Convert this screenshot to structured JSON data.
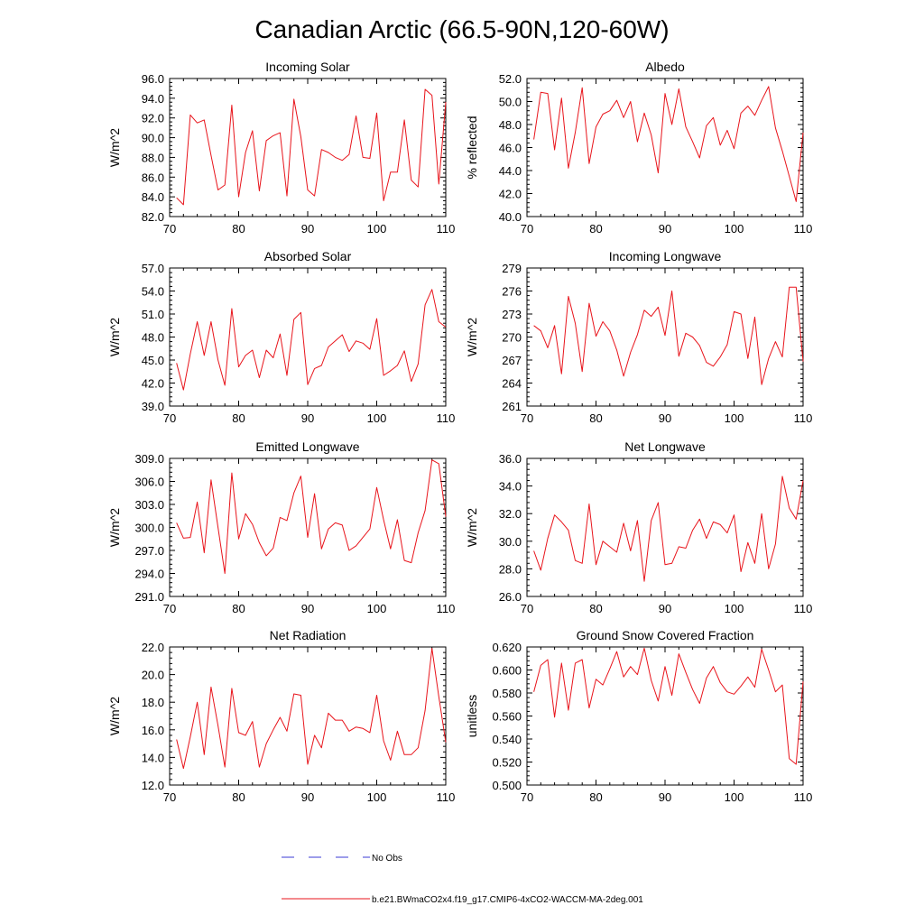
{
  "title": "Canadian Arctic (66.5-90N,120-60W)",
  "colors": {
    "model_line": "#e8141b",
    "obs_line": "#3b3bd6",
    "axis": "#000000"
  },
  "legend": {
    "obs_label": "No Obs",
    "model_label": "b.e21.BWmaCO2x4.f19_g17.CMIP6-4xCO2-WACCM-MA-2deg.001"
  },
  "chart_data": [
    {
      "type": "line",
      "title": "Incoming Solar",
      "ylabel": "W/m^2",
      "xlim": [
        70,
        110
      ],
      "ylim": [
        82,
        96
      ],
      "xticks": [
        70,
        80,
        90,
        100,
        110
      ],
      "yticks": [
        82,
        84,
        86,
        88,
        90,
        92,
        94,
        96
      ],
      "ydecimals": 1,
      "x": [
        71,
        72,
        73,
        74,
        75,
        76,
        77,
        78,
        79,
        80,
        81,
        82,
        83,
        84,
        85,
        86,
        87,
        88,
        89,
        90,
        91,
        92,
        93,
        94,
        95,
        96,
        97,
        98,
        99,
        100,
        101,
        102,
        103,
        104,
        105,
        106,
        107,
        108,
        109,
        110
      ],
      "values": [
        83.9,
        83.2,
        92.3,
        91.5,
        91.8,
        88.2,
        84.7,
        85.2,
        93.3,
        84.0,
        88.5,
        90.7,
        84.6,
        89.7,
        90.2,
        90.5,
        84.1,
        93.9,
        90.1,
        84.7,
        84.1,
        88.8,
        88.5,
        88.0,
        87.7,
        88.3,
        92.2,
        88.0,
        87.9,
        92.5,
        83.6,
        86.5,
        86.5,
        91.8,
        85.7,
        85.0,
        94.9,
        94.3,
        85.3,
        93.6
      ]
    },
    {
      "type": "line",
      "title": "Albedo",
      "ylabel": "% reflected",
      "xlim": [
        70,
        110
      ],
      "ylim": [
        40,
        52
      ],
      "xticks": [
        70,
        80,
        90,
        100,
        110
      ],
      "yticks": [
        40,
        42,
        44,
        46,
        48,
        50,
        52
      ],
      "ydecimals": 1,
      "x": [
        71,
        72,
        73,
        74,
        75,
        76,
        77,
        78,
        79,
        80,
        81,
        82,
        83,
        84,
        85,
        86,
        87,
        88,
        89,
        90,
        91,
        92,
        93,
        94,
        95,
        96,
        97,
        98,
        99,
        100,
        101,
        102,
        103,
        104,
        105,
        106,
        107,
        108,
        109,
        110
      ],
      "values": [
        46.7,
        50.8,
        50.7,
        45.8,
        50.3,
        44.2,
        47.3,
        51.2,
        44.6,
        47.8,
        48.9,
        49.2,
        50.1,
        48.6,
        50.0,
        46.5,
        49.0,
        47.1,
        43.8,
        50.7,
        48.0,
        51.1,
        47.8,
        46.5,
        45.1,
        47.9,
        48.6,
        46.2,
        47.5,
        45.9,
        49.0,
        49.6,
        48.8,
        50.1,
        51.3,
        47.7,
        45.7,
        43.5,
        41.3,
        47.3
      ]
    },
    {
      "type": "line",
      "title": "Absorbed Solar",
      "ylabel": "W/m^2",
      "xlim": [
        70,
        110
      ],
      "ylim": [
        39,
        57
      ],
      "xticks": [
        70,
        80,
        90,
        100,
        110
      ],
      "yticks": [
        39,
        42,
        45,
        48,
        51,
        54,
        57
      ],
      "ydecimals": 1,
      "x": [
        71,
        72,
        73,
        74,
        75,
        76,
        77,
        78,
        79,
        80,
        81,
        82,
        83,
        84,
        85,
        86,
        87,
        88,
        89,
        90,
        91,
        92,
        93,
        94,
        95,
        96,
        97,
        98,
        99,
        100,
        101,
        102,
        103,
        104,
        105,
        106,
        107,
        108,
        109,
        110
      ],
      "values": [
        44.6,
        41.1,
        45.8,
        50.0,
        45.6,
        50.0,
        45.0,
        41.7,
        51.7,
        44.1,
        45.6,
        46.3,
        42.7,
        46.3,
        45.3,
        48.4,
        43.0,
        50.3,
        51.2,
        41.8,
        43.9,
        44.3,
        46.7,
        47.5,
        48.3,
        46.1,
        47.5,
        47.2,
        46.4,
        50.4,
        43.0,
        43.6,
        44.3,
        46.2,
        42.2,
        44.5,
        52.2,
        54.2,
        50.0,
        49.3
      ]
    },
    {
      "type": "line",
      "title": "Incoming Longwave",
      "ylabel": "W/m^2",
      "xlim": [
        70,
        110
      ],
      "ylim": [
        261,
        279
      ],
      "xticks": [
        70,
        80,
        90,
        100,
        110
      ],
      "yticks": [
        261,
        264,
        267,
        270,
        273,
        276,
        279
      ],
      "ydecimals": 0,
      "x": [
        71,
        72,
        73,
        74,
        75,
        76,
        77,
        78,
        79,
        80,
        81,
        82,
        83,
        84,
        85,
        86,
        87,
        88,
        89,
        90,
        91,
        92,
        93,
        94,
        95,
        96,
        97,
        98,
        99,
        100,
        101,
        102,
        103,
        104,
        105,
        106,
        107,
        108,
        109,
        110
      ],
      "values": [
        271.5,
        270.8,
        268.6,
        271.5,
        265.2,
        275.3,
        271.8,
        265.5,
        274.4,
        270.1,
        272.0,
        270.8,
        268.3,
        264.9,
        268.0,
        270.3,
        273.5,
        272.7,
        273.9,
        270.2,
        276.0,
        267.5,
        270.5,
        270.0,
        268.9,
        266.7,
        266.2,
        267.4,
        269.0,
        273.3,
        273.0,
        267.2,
        272.6,
        263.8,
        267.2,
        269.4,
        267.4,
        276.5,
        276.5,
        266.8
      ]
    },
    {
      "type": "line",
      "title": "Emitted Longwave",
      "ylabel": "W/m^2",
      "xlim": [
        70,
        110
      ],
      "ylim": [
        291,
        309
      ],
      "xticks": [
        70,
        80,
        90,
        100,
        110
      ],
      "yticks": [
        291,
        294,
        297,
        300,
        303,
        306,
        309
      ],
      "ydecimals": 1,
      "x": [
        71,
        72,
        73,
        74,
        75,
        76,
        77,
        78,
        79,
        80,
        81,
        82,
        83,
        84,
        85,
        86,
        87,
        88,
        89,
        90,
        91,
        92,
        93,
        94,
        95,
        96,
        97,
        98,
        99,
        100,
        101,
        102,
        103,
        104,
        105,
        106,
        107,
        108,
        109,
        110
      ],
      "values": [
        300.6,
        298.6,
        298.7,
        303.3,
        296.7,
        306.2,
        300.0,
        294.0,
        307.1,
        298.5,
        301.8,
        300.4,
        298.0,
        296.3,
        297.3,
        301.3,
        300.9,
        304.5,
        306.7,
        298.7,
        304.4,
        297.2,
        299.8,
        300.6,
        300.3,
        297.0,
        297.6,
        298.7,
        299.8,
        305.2,
        301.0,
        297.2,
        301.0,
        295.7,
        295.4,
        299.3,
        302.2,
        308.8,
        308.3,
        301.4
      ]
    },
    {
      "type": "line",
      "title": "Net Longwave",
      "ylabel": "W/m^2",
      "xlim": [
        70,
        110
      ],
      "ylim": [
        26,
        36
      ],
      "xticks": [
        70,
        80,
        90,
        100,
        110
      ],
      "yticks": [
        26,
        28,
        30,
        32,
        34,
        36
      ],
      "ydecimals": 1,
      "x": [
        71,
        72,
        73,
        74,
        75,
        76,
        77,
        78,
        79,
        80,
        81,
        82,
        83,
        84,
        85,
        86,
        87,
        88,
        89,
        90,
        91,
        92,
        93,
        94,
        95,
        96,
        97,
        98,
        99,
        100,
        101,
        102,
        103,
        104,
        105,
        106,
        107,
        108,
        109,
        110
      ],
      "values": [
        29.3,
        27.9,
        30.2,
        31.9,
        31.4,
        30.8,
        28.6,
        28.4,
        32.7,
        28.3,
        30.0,
        29.6,
        29.2,
        31.3,
        29.3,
        31.5,
        27.1,
        31.5,
        32.8,
        28.3,
        28.4,
        29.6,
        29.5,
        30.8,
        31.6,
        30.2,
        31.4,
        31.2,
        30.6,
        31.9,
        27.8,
        29.9,
        28.4,
        32.0,
        28.0,
        29.8,
        34.7,
        32.4,
        31.6,
        34.4
      ]
    },
    {
      "type": "line",
      "title": "Net Radiation",
      "ylabel": "W/m^2",
      "xlim": [
        70,
        110
      ],
      "ylim": [
        12,
        22
      ],
      "xticks": [
        70,
        80,
        90,
        100,
        110
      ],
      "yticks": [
        12,
        14,
        16,
        18,
        20,
        22
      ],
      "ydecimals": 1,
      "x": [
        71,
        72,
        73,
        74,
        75,
        76,
        77,
        78,
        79,
        80,
        81,
        82,
        83,
        84,
        85,
        86,
        87,
        88,
        89,
        90,
        91,
        92,
        93,
        94,
        95,
        96,
        97,
        98,
        99,
        100,
        101,
        102,
        103,
        104,
        105,
        106,
        107,
        108,
        109,
        110
      ],
      "values": [
        15.3,
        13.2,
        15.5,
        18.0,
        14.2,
        19.1,
        16.3,
        13.3,
        19.0,
        15.8,
        15.6,
        16.6,
        13.3,
        15.0,
        16.0,
        16.9,
        15.9,
        18.6,
        18.5,
        13.5,
        15.6,
        14.7,
        17.2,
        16.7,
        16.7,
        15.9,
        16.2,
        16.1,
        15.8,
        18.5,
        15.2,
        13.8,
        15.9,
        14.2,
        14.2,
        14.7,
        17.4,
        21.9,
        18.4,
        15.1
      ]
    },
    {
      "type": "line",
      "title": "Ground Snow Covered Fraction",
      "ylabel": "unitless",
      "xlim": [
        70,
        110
      ],
      "ylim": [
        0.5,
        0.62
      ],
      "xticks": [
        70,
        80,
        90,
        100,
        110
      ],
      "yticks": [
        0.5,
        0.52,
        0.54,
        0.56,
        0.58,
        0.6,
        0.62
      ],
      "ydecimals": 3,
      "x": [
        71,
        72,
        73,
        74,
        75,
        76,
        77,
        78,
        79,
        80,
        81,
        82,
        83,
        84,
        85,
        86,
        87,
        88,
        89,
        90,
        91,
        92,
        93,
        94,
        95,
        96,
        97,
        98,
        99,
        100,
        101,
        102,
        103,
        104,
        105,
        106,
        107,
        108,
        109,
        110
      ],
      "values": [
        0.581,
        0.604,
        0.609,
        0.559,
        0.606,
        0.565,
        0.606,
        0.609,
        0.567,
        0.592,
        0.587,
        0.601,
        0.616,
        0.594,
        0.603,
        0.596,
        0.619,
        0.591,
        0.573,
        0.603,
        0.578,
        0.614,
        0.598,
        0.583,
        0.571,
        0.593,
        0.603,
        0.589,
        0.581,
        0.579,
        0.586,
        0.594,
        0.585,
        0.618,
        0.6,
        0.581,
        0.587,
        0.523,
        0.518,
        0.59
      ]
    }
  ]
}
